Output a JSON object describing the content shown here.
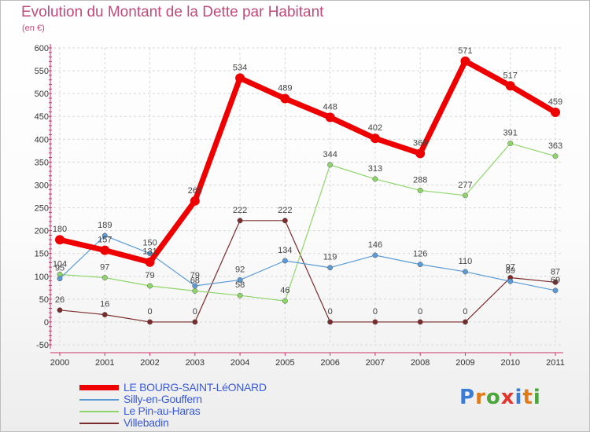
{
  "title": "Evolution du Montant de la Dette par Habitant",
  "subtitle": "(en €)",
  "logo": {
    "text": "Proxiti",
    "colors": [
      "#3a7bd5",
      "#e07b1a",
      "#4aa53b",
      "#e0342d",
      "#3a7bd5",
      "#e07b1a",
      "#4aa53b"
    ]
  },
  "chart_data": {
    "type": "line",
    "title": "Evolution du Montant de la Dette par Habitant",
    "subtitle": "(en €)",
    "categories": [
      "2000",
      "2001",
      "2002",
      "2003",
      "2004",
      "2005",
      "2006",
      "2007",
      "2008",
      "2009",
      "2010",
      "2011"
    ],
    "ylim": [
      -50,
      600
    ],
    "yticks": [
      "-50",
      "0",
      "50",
      "100",
      "150",
      "200",
      "250",
      "300",
      "350",
      "400",
      "450",
      "500",
      "550",
      "600"
    ],
    "grid": true,
    "legend_position": "bottom-left",
    "series": [
      {
        "name": "LE BOURG-SAINT-LéONARD",
        "color": "#ee0000",
        "values": [
          180,
          157,
          131,
          265,
          534,
          489,
          448,
          402,
          369,
          571,
          517,
          459
        ],
        "labels": [
          "180",
          "157",
          "131",
          "265",
          "534",
          "489",
          "448",
          "402",
          "369",
          "571",
          "517",
          "459"
        ]
      },
      {
        "name": "Silly-en-Gouffern",
        "color": "#5b9bd5",
        "values": [
          95,
          189,
          150,
          79,
          92,
          134,
          119,
          146,
          126,
          110,
          89,
          69
        ],
        "labels": [
          "95",
          "189",
          "150",
          "79",
          "92",
          "134",
          "119",
          "146",
          "126",
          "110",
          "89",
          "69"
        ]
      },
      {
        "name": "Le Pin-au-Haras",
        "color": "#8fd66a",
        "values": [
          104,
          97,
          79,
          68,
          58,
          46,
          344,
          313,
          288,
          277,
          391,
          363
        ],
        "labels": [
          "104",
          "97",
          "79",
          "68",
          "58",
          "46",
          "344",
          "313",
          "288",
          "277",
          "391",
          "363"
        ]
      },
      {
        "name": "Villebadin",
        "color": "#7a2b2b",
        "values": [
          26,
          16,
          0,
          0,
          222,
          222,
          0,
          0,
          0,
          0,
          97,
          87
        ],
        "labels": [
          "26",
          "16",
          "0",
          "0",
          "222",
          "222",
          "0",
          "0",
          "0",
          "0",
          "97",
          "87"
        ]
      }
    ]
  }
}
